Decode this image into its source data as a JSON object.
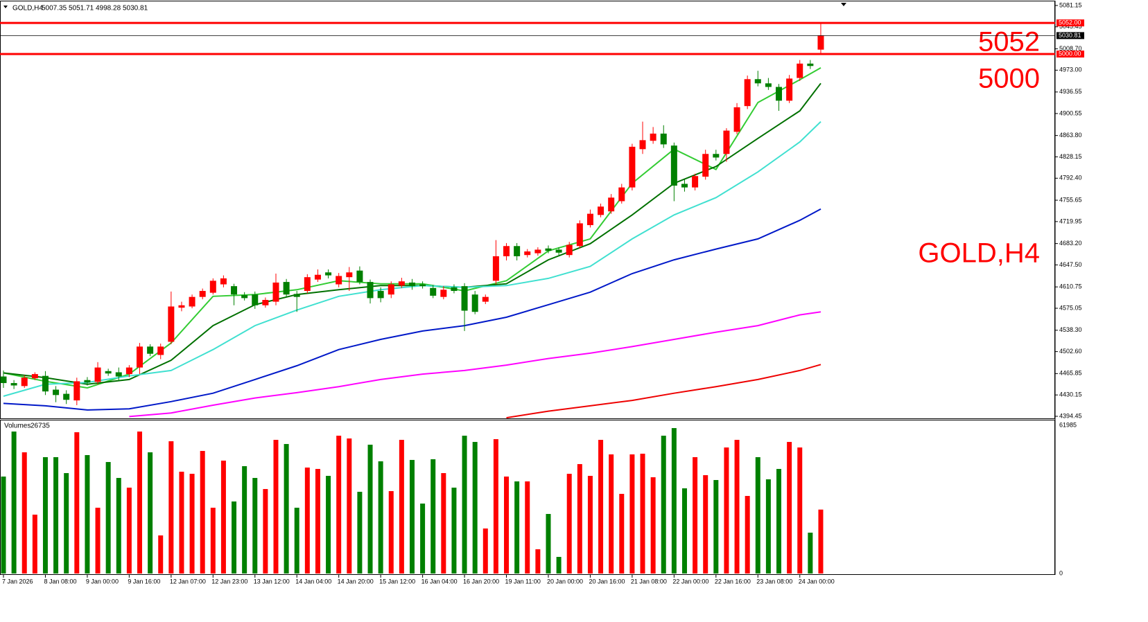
{
  "chart_data": [
    {
      "type": "candlestick",
      "symbol": "GOLD,H4",
      "categories": [
        "7 Jan 2026",
        null,
        null,
        null,
        "8 Jan 08:00",
        null,
        null,
        null,
        "9 Jan 00:00",
        null,
        null,
        null,
        "9 Jan 16:00",
        null,
        null,
        null,
        "12 Jan 07:00",
        null,
        null,
        null,
        "12 Jan 23:00",
        null,
        null,
        null,
        "13 Jan 12:00",
        null,
        null,
        null,
        "14 Jan 04:00",
        null,
        null,
        null,
        "14 Jan 20:00",
        null,
        null,
        null,
        "15 Jan 12:00",
        null,
        null,
        null,
        "16 Jan 04:00",
        null,
        null,
        null,
        "16 Jan 20:00",
        null,
        null,
        null,
        "19 Jan 11:00",
        null,
        null,
        null,
        "20 Jan 00:00",
        null,
        null,
        null,
        "20 Jan 16:00",
        null,
        null,
        null,
        "21 Jan 08:00",
        null,
        null,
        null,
        "22 Jan 00:00",
        null,
        null,
        null,
        "22 Jan 16:00",
        null,
        null,
        null,
        "23 Jan 08:00",
        null,
        null,
        null,
        "24 Jan 00:00",
        null,
        null
      ],
      "open": [
        4461,
        4450,
        4445,
        4458,
        4462,
        4439,
        4432,
        4421,
        4455,
        4452,
        4470,
        4468,
        4465,
        4476,
        4511,
        4497,
        4519,
        4576,
        4578,
        4594,
        4601,
        4615,
        4612,
        4597,
        4598,
        4580,
        4586,
        4619,
        4599,
        4604,
        4623,
        4635,
        4615,
        4627,
        4638,
        4619,
        4604,
        4598,
        4613,
        4618,
        4615,
        4609,
        4594,
        4610,
        4612,
        4598,
        4586,
        4621,
        4662,
        4679,
        4664,
        4667,
        4675,
        4673,
        4664,
        4679,
        4714,
        4731,
        4737,
        4754,
        4777,
        4841,
        4855,
        4867,
        4847,
        4783,
        4777,
        4795,
        4833,
        4833,
        4870,
        4913,
        4958,
        4951,
        4945,
        4922,
        4960,
        4984,
        5007.35
      ],
      "high": [
        4471,
        4455,
        4463,
        4468,
        4470,
        4445,
        4438,
        4459,
        4460,
        4485,
        4474,
        4476,
        4480,
        4517,
        4515,
        4516,
        4603,
        4586,
        4598,
        4608,
        4625,
        4630,
        4616,
        4602,
        4603,
        4593,
        4633,
        4624,
        4604,
        4632,
        4640,
        4640,
        4634,
        4644,
        4645,
        4623,
        4610,
        4620,
        4626,
        4624,
        4620,
        4614,
        4612,
        4615,
        4617,
        4604,
        4598,
        4689,
        4684,
        4684,
        4674,
        4677,
        4680,
        4677,
        4686,
        4722,
        4740,
        4750,
        4766,
        4783,
        4850,
        4887,
        4878,
        4881,
        4852,
        4790,
        4800,
        4840,
        4840,
        4876,
        4918,
        4964,
        4972,
        4960,
        4950,
        4965,
        4990,
        4990,
        5051.71
      ],
      "low": [
        4442,
        4440,
        4442,
        4455,
        4430,
        4418,
        4415,
        4413,
        4446,
        4448,
        4462,
        4455,
        4460,
        4465,
        4495,
        4490,
        4515,
        4570,
        4575,
        4590,
        4598,
        4610,
        4580,
        4588,
        4574,
        4576,
        4580,
        4594,
        4569,
        4600,
        4619,
        4625,
        4610,
        4604,
        4615,
        4583,
        4585,
        4592,
        4609,
        4606,
        4608,
        4592,
        4590,
        4600,
        4537,
        4565,
        4582,
        4615,
        4655,
        4655,
        4660,
        4663,
        4667,
        4664,
        4660,
        4675,
        4710,
        4727,
        4733,
        4750,
        4772,
        4833,
        4850,
        4843,
        4754,
        4770,
        4772,
        4790,
        4822,
        4820,
        4866,
        4908,
        4946,
        4940,
        4905,
        4918,
        4955,
        4975,
        4998.28
      ],
      "close": [
        4450,
        4446,
        4459,
        4465,
        4436,
        4430,
        4422,
        4453,
        4451,
        4476,
        4466,
        4461,
        4476,
        4511,
        4499,
        4511,
        4578,
        4580,
        4594,
        4604,
        4621,
        4625,
        4598,
        4592,
        4580,
        4589,
        4618,
        4598,
        4594,
        4627,
        4631,
        4630,
        4629,
        4635,
        4619,
        4592,
        4592,
        4615,
        4620,
        4612,
        4612,
        4596,
        4606,
        4604,
        4571,
        4569,
        4594,
        4662,
        4679,
        4662,
        4670,
        4673,
        4671,
        4668,
        4681,
        4717,
        4733,
        4745,
        4760,
        4777,
        4845,
        4856,
        4867,
        4849,
        4780,
        4777,
        4796,
        4833,
        4827,
        4872,
        4911,
        4958,
        4951,
        4945,
        4922,
        4959,
        4984,
        4980,
        5030.81
      ],
      "up_color": "#ff0000",
      "down_color": "#008000",
      "ylim": [
        4391,
        5088
      ],
      "yticks": [
        5081.15,
        5045.45,
        {
          "value": 5008.7,
          "label": "5008.70"
        },
        {
          "value": 4973,
          "label": "4973.00"
        },
        4936.55,
        4900.55,
        {
          "value": 4863.8,
          "label": "4863.80"
        },
        4828.15,
        {
          "value": 4792.4,
          "label": "4792.40"
        },
        4755.65,
        4719.95,
        {
          "value": 4683.2,
          "label": "4683.20"
        },
        {
          "value": 4647.5,
          "label": "4647.50"
        },
        4610.75,
        4575.05,
        {
          "value": 4538.3,
          "label": "4538.30"
        },
        {
          "value": 4502.6,
          "label": "4502.60"
        },
        4465.85,
        4430.15,
        4394.45
      ],
      "hlines": [
        {
          "value": 5052,
          "label": "5052.00",
          "color": "#ff0000"
        },
        {
          "value": 5000,
          "label": "5000.00",
          "color": "#ff0000"
        }
      ],
      "moving_averages": [
        {
          "color": "#33cc33",
          "x": [
            0,
            4,
            8,
            12,
            16,
            20,
            24,
            28,
            32,
            36,
            40,
            44,
            48,
            52,
            56,
            60,
            64,
            68,
            72,
            76,
            78
          ],
          "values": [
            4467,
            4453,
            4442,
            4465,
            4517,
            4595,
            4598,
            4606,
            4621,
            4616,
            4616,
            4604,
            4621,
            4671,
            4691,
            4784,
            4841,
            4807,
            4919,
            4957,
            4977
          ]
        },
        {
          "color": "#007000",
          "x": [
            0,
            4,
            8,
            12,
            16,
            20,
            24,
            28,
            32,
            36,
            40,
            44,
            48,
            52,
            56,
            60,
            64,
            68,
            72,
            76,
            78
          ],
          "values": [
            4467,
            4459,
            4448,
            4456,
            4488,
            4546,
            4581,
            4598,
            4606,
            4613,
            4613,
            4610,
            4616,
            4656,
            4683,
            4731,
            4784,
            4812,
            4859,
            4905,
            4951
          ]
        },
        {
          "color": "#40e0d0",
          "x": [
            0,
            4,
            8,
            12,
            16,
            20,
            24,
            28,
            32,
            36,
            40,
            44,
            48,
            52,
            56,
            60,
            64,
            68,
            72,
            76,
            78
          ],
          "values": [
            4428,
            4448,
            4451,
            4462,
            4471,
            4506,
            4546,
            4572,
            4595,
            4606,
            4613,
            4610,
            4613,
            4625,
            4645,
            4691,
            4731,
            4760,
            4803,
            4853,
            4887
          ]
        },
        {
          "color": "#0018c8",
          "x": [
            0,
            4,
            8,
            12,
            16,
            20,
            24,
            28,
            32,
            36,
            40,
            44,
            48,
            52,
            56,
            60,
            64,
            68,
            72,
            76,
            78
          ],
          "values": [
            4416,
            4412,
            4405,
            4407,
            4419,
            4433,
            4456,
            4479,
            4506,
            4523,
            4537,
            4546,
            4560,
            4581,
            4602,
            4633,
            4656,
            4674,
            4691,
            4722,
            4741
          ]
        },
        {
          "color": "#ff00ff",
          "x": [
            12,
            16,
            20,
            24,
            28,
            32,
            36,
            40,
            44,
            48,
            52,
            56,
            60,
            64,
            68,
            72,
            76,
            78
          ],
          "values": [
            4394,
            4400,
            4413,
            4425,
            4434,
            4444,
            4456,
            4465,
            4471,
            4480,
            4491,
            4500,
            4511,
            4523,
            4535,
            4546,
            4564,
            4569
          ]
        },
        {
          "color": "#ee0000",
          "x": [
            48,
            52,
            56,
            60,
            64,
            68,
            72,
            76,
            78
          ],
          "values": [
            4392,
            4403,
            4412,
            4421,
            4433,
            4444,
            4456,
            4471,
            4481
          ]
        }
      ]
    },
    {
      "type": "volume",
      "title": "Volumes",
      "values": [
        40544,
        59368,
        50680,
        24616,
        48653,
        48653,
        41992,
        59078,
        49522,
        27512,
        46626,
        39965,
        35910,
        59368,
        50680,
        15928,
        55314,
        42571,
        41702,
        51259,
        27512,
        47205,
        30118,
        44888,
        39965,
        35331,
        55893,
        54155,
        27512,
        44309,
        43730,
        40834,
        57630,
        56472,
        34173,
        53866,
        46915,
        34462,
        55893,
        47494,
        29250,
        47784,
        41992,
        35910,
        57630,
        55024,
        18824,
        56182,
        40544,
        38517,
        38517,
        10136,
        24906,
        6950,
        41702,
        45757,
        40834,
        55893,
        49811,
        33304,
        49811,
        50101,
        40254,
        57630,
        60816,
        35621,
        48653,
        41123,
        39096,
        52707,
        55893,
        32435,
        48653,
        39386,
        43730,
        55024,
        52707,
        17086,
        26735
      ],
      "ylim": [
        0,
        61985
      ],
      "yticks": [
        0,
        61985
      ]
    }
  ]
}
